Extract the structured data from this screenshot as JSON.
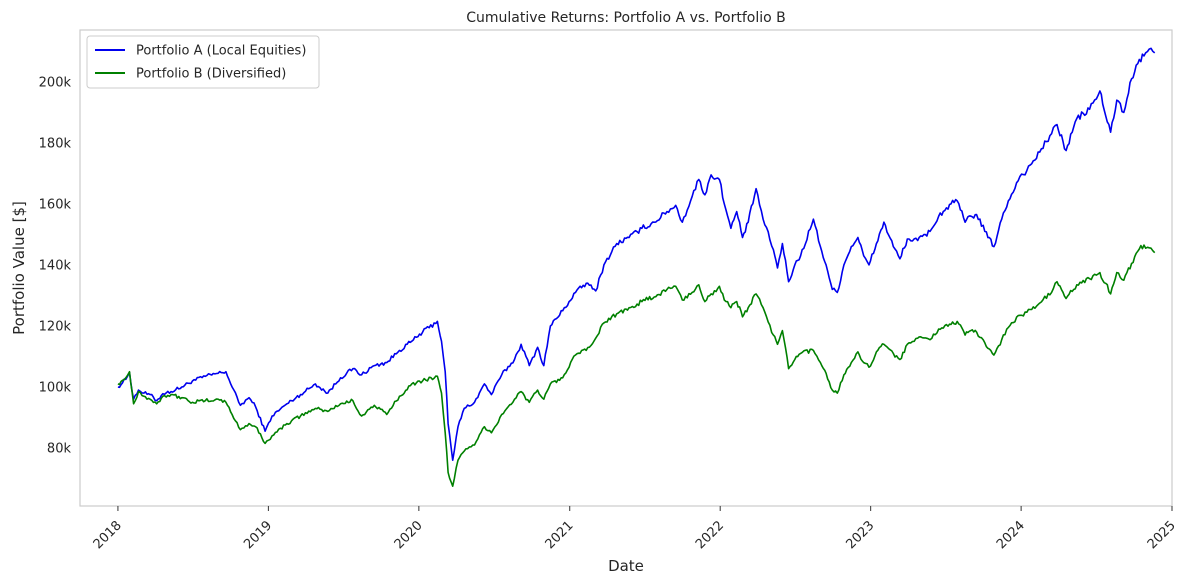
{
  "chart_data": {
    "type": "line",
    "title": "Cumulative Returns: Portfolio A vs. Portfolio B",
    "xlabel": "Date",
    "ylabel": "Portfolio Value [$]",
    "x_range": [
      "2017-10-01",
      "2025-01-01"
    ],
    "y_range": [
      61000,
      217000
    ],
    "grid": false,
    "legend_position": "top-left",
    "x_ticks": [
      {
        "date": "2018-01-01",
        "label": "2018"
      },
      {
        "date": "2019-01-01",
        "label": "2019"
      },
      {
        "date": "2020-01-01",
        "label": "2020"
      },
      {
        "date": "2021-01-01",
        "label": "2021"
      },
      {
        "date": "2022-01-01",
        "label": "2022"
      },
      {
        "date": "2023-01-01",
        "label": "2023"
      },
      {
        "date": "2024-01-01",
        "label": "2024"
      },
      {
        "date": "2025-01-01",
        "label": "2025"
      }
    ],
    "y_ticks": [
      {
        "value": 80000,
        "label": "80k"
      },
      {
        "value": 100000,
        "label": "100k"
      },
      {
        "value": 120000,
        "label": "120k"
      },
      {
        "value": 140000,
        "label": "140k"
      },
      {
        "value": 160000,
        "label": "160k"
      },
      {
        "value": 180000,
        "label": "180k"
      },
      {
        "value": 200000,
        "label": "200k"
      }
    ],
    "series": [
      {
        "name": "Portfolio A (Local Equities)",
        "color": "#0000ee",
        "points": [
          [
            "2018-01-01",
            100000
          ],
          [
            "2018-01-20",
            102500
          ],
          [
            "2018-01-29",
            104800
          ],
          [
            "2018-02-08",
            96000
          ],
          [
            "2018-02-20",
            99000
          ],
          [
            "2018-03-05",
            98000
          ],
          [
            "2018-03-20",
            97500
          ],
          [
            "2018-04-05",
            95500
          ],
          [
            "2018-04-20",
            97800
          ],
          [
            "2018-05-10",
            98500
          ],
          [
            "2018-06-05",
            100000
          ],
          [
            "2018-07-01",
            102000
          ],
          [
            "2018-08-01",
            103500
          ],
          [
            "2018-09-01",
            104500
          ],
          [
            "2018-09-20",
            105000
          ],
          [
            "2018-10-05",
            100000
          ],
          [
            "2018-10-25",
            94000
          ],
          [
            "2018-11-15",
            96500
          ],
          [
            "2018-12-01",
            93500
          ],
          [
            "2018-12-24",
            85500
          ],
          [
            "2019-01-10",
            90500
          ],
          [
            "2019-02-15",
            94500
          ],
          [
            "2019-03-20",
            97500
          ],
          [
            "2019-04-25",
            101000
          ],
          [
            "2019-05-25",
            98000
          ],
          [
            "2019-06-25",
            103000
          ],
          [
            "2019-07-25",
            106000
          ],
          [
            "2019-08-15",
            104000
          ],
          [
            "2019-09-15",
            107000
          ],
          [
            "2019-10-15",
            108000
          ],
          [
            "2019-11-15",
            112000
          ],
          [
            "2019-12-15",
            115000
          ],
          [
            "2020-01-10",
            118000
          ],
          [
            "2020-02-15",
            121500
          ],
          [
            "2020-02-25",
            115000
          ],
          [
            "2020-03-05",
            105000
          ],
          [
            "2020-03-12",
            88000
          ],
          [
            "2020-03-23",
            76000
          ],
          [
            "2020-04-05",
            87000
          ],
          [
            "2020-04-20",
            93000
          ],
          [
            "2020-05-15",
            95000
          ],
          [
            "2020-06-08",
            101000
          ],
          [
            "2020-06-25",
            97500
          ],
          [
            "2020-07-20",
            104000
          ],
          [
            "2020-08-20",
            109000
          ],
          [
            "2020-09-05",
            114000
          ],
          [
            "2020-09-25",
            107000
          ],
          [
            "2020-10-15",
            113000
          ],
          [
            "2020-10-30",
            107000
          ],
          [
            "2020-11-15",
            120000
          ],
          [
            "2020-12-15",
            125000
          ],
          [
            "2021-01-15",
            131000
          ],
          [
            "2021-02-10",
            134000
          ],
          [
            "2021-03-05",
            131500
          ],
          [
            "2021-03-25",
            140000
          ],
          [
            "2021-04-25",
            147000
          ],
          [
            "2021-05-25",
            149000
          ],
          [
            "2021-06-25",
            152000
          ],
          [
            "2021-07-25",
            154000
          ],
          [
            "2021-08-25",
            157500
          ],
          [
            "2021-09-15",
            159500
          ],
          [
            "2021-10-01",
            154000
          ],
          [
            "2021-10-25",
            162500
          ],
          [
            "2021-11-10",
            168000
          ],
          [
            "2021-11-25",
            163000
          ],
          [
            "2021-12-10",
            169500
          ],
          [
            "2021-12-30",
            168000
          ],
          [
            "2022-01-15",
            158000
          ],
          [
            "2022-01-27",
            152000
          ],
          [
            "2022-02-10",
            157500
          ],
          [
            "2022-02-24",
            149000
          ],
          [
            "2022-03-10",
            154000
          ],
          [
            "2022-03-29",
            165000
          ],
          [
            "2022-04-15",
            155000
          ],
          [
            "2022-05-10",
            145000
          ],
          [
            "2022-05-20",
            139000
          ],
          [
            "2022-06-01",
            147000
          ],
          [
            "2022-06-16",
            134500
          ],
          [
            "2022-07-01",
            140000
          ],
          [
            "2022-07-15",
            143000
          ],
          [
            "2022-08-15",
            155000
          ],
          [
            "2022-09-01",
            146000
          ],
          [
            "2022-09-15",
            140000
          ],
          [
            "2022-09-30",
            132000
          ],
          [
            "2022-10-12",
            131000
          ],
          [
            "2022-10-28",
            140000
          ],
          [
            "2022-11-15",
            146000
          ],
          [
            "2022-12-01",
            149000
          ],
          [
            "2022-12-15",
            143000
          ],
          [
            "2022-12-28",
            140000
          ],
          [
            "2023-01-15",
            147000
          ],
          [
            "2023-02-02",
            154000
          ],
          [
            "2023-02-25",
            146000
          ],
          [
            "2023-03-13",
            142000
          ],
          [
            "2023-03-31",
            148500
          ],
          [
            "2023-04-25",
            148000
          ],
          [
            "2023-05-25",
            151000
          ],
          [
            "2023-06-15",
            156000
          ],
          [
            "2023-07-15",
            160000
          ],
          [
            "2023-07-30",
            161000
          ],
          [
            "2023-08-18",
            154000
          ],
          [
            "2023-09-01",
            156000
          ],
          [
            "2023-09-15",
            156500
          ],
          [
            "2023-10-05",
            151000
          ],
          [
            "2023-10-27",
            146000
          ],
          [
            "2023-11-15",
            155000
          ],
          [
            "2023-12-01",
            161000
          ],
          [
            "2023-12-29",
            169000
          ],
          [
            "2024-01-15",
            171000
          ],
          [
            "2024-02-15",
            177000
          ],
          [
            "2024-03-15",
            183000
          ],
          [
            "2024-03-28",
            186000
          ],
          [
            "2024-04-19",
            177500
          ],
          [
            "2024-05-15",
            188000
          ],
          [
            "2024-06-15",
            191000
          ],
          [
            "2024-07-10",
            197000
          ],
          [
            "2024-07-24",
            189000
          ],
          [
            "2024-08-05",
            183500
          ],
          [
            "2024-08-20",
            194000
          ],
          [
            "2024-09-06",
            190000
          ],
          [
            "2024-09-25",
            201000
          ],
          [
            "2024-10-10",
            206000
          ],
          [
            "2024-10-25",
            208500
          ],
          [
            "2024-11-11",
            211000
          ],
          [
            "2024-11-20",
            209500
          ]
        ]
      },
      {
        "name": "Portfolio B (Diversified)",
        "color": "#008000",
        "points": [
          [
            "2018-01-01",
            101000
          ],
          [
            "2018-01-20",
            103000
          ],
          [
            "2018-01-29",
            105000
          ],
          [
            "2018-02-08",
            94500
          ],
          [
            "2018-02-20",
            98500
          ],
          [
            "2018-03-05",
            97000
          ],
          [
            "2018-03-20",
            96000
          ],
          [
            "2018-04-05",
            94500
          ],
          [
            "2018-04-20",
            97000
          ],
          [
            "2018-05-10",
            97500
          ],
          [
            "2018-06-05",
            96500
          ],
          [
            "2018-07-01",
            95000
          ],
          [
            "2018-08-01",
            95500
          ],
          [
            "2018-09-01",
            96000
          ],
          [
            "2018-09-20",
            95000
          ],
          [
            "2018-10-05",
            91000
          ],
          [
            "2018-10-25",
            86000
          ],
          [
            "2018-11-15",
            88000
          ],
          [
            "2018-12-01",
            87000
          ],
          [
            "2018-12-24",
            81500
          ],
          [
            "2019-01-10",
            84000
          ],
          [
            "2019-02-15",
            88000
          ],
          [
            "2019-03-20",
            90500
          ],
          [
            "2019-04-25",
            93000
          ],
          [
            "2019-05-25",
            92000
          ],
          [
            "2019-06-25",
            94500
          ],
          [
            "2019-07-25",
            95500
          ],
          [
            "2019-08-15",
            90500
          ],
          [
            "2019-09-15",
            94000
          ],
          [
            "2019-10-15",
            91000
          ],
          [
            "2019-11-15",
            97000
          ],
          [
            "2019-12-15",
            101000
          ],
          [
            "2020-01-10",
            102000
          ],
          [
            "2020-02-15",
            103500
          ],
          [
            "2020-02-25",
            98000
          ],
          [
            "2020-03-05",
            85000
          ],
          [
            "2020-03-12",
            72000
          ],
          [
            "2020-03-23",
            67500
          ],
          [
            "2020-04-05",
            76000
          ],
          [
            "2020-04-20",
            79000
          ],
          [
            "2020-05-15",
            81000
          ],
          [
            "2020-06-08",
            87000
          ],
          [
            "2020-06-25",
            85000
          ],
          [
            "2020-07-20",
            91000
          ],
          [
            "2020-08-20",
            96000
          ],
          [
            "2020-09-05",
            98500
          ],
          [
            "2020-09-25",
            95000
          ],
          [
            "2020-10-15",
            99000
          ],
          [
            "2020-10-30",
            96000
          ],
          [
            "2020-11-15",
            101000
          ],
          [
            "2020-12-15",
            103000
          ],
          [
            "2021-01-15",
            110500
          ],
          [
            "2021-02-10",
            112000
          ],
          [
            "2021-03-05",
            116000
          ],
          [
            "2021-03-25",
            121000
          ],
          [
            "2021-04-25",
            124000
          ],
          [
            "2021-05-25",
            126000
          ],
          [
            "2021-06-25",
            128000
          ],
          [
            "2021-07-25",
            129500
          ],
          [
            "2021-08-25",
            132000
          ],
          [
            "2021-09-15",
            133000
          ],
          [
            "2021-10-01",
            128500
          ],
          [
            "2021-10-25",
            131000
          ],
          [
            "2021-11-10",
            133500
          ],
          [
            "2021-11-25",
            128000
          ],
          [
            "2021-12-10",
            130500
          ],
          [
            "2021-12-30",
            133000
          ],
          [
            "2022-01-15",
            128000
          ],
          [
            "2022-01-27",
            126000
          ],
          [
            "2022-02-10",
            128000
          ],
          [
            "2022-02-24",
            123000
          ],
          [
            "2022-03-10",
            126000
          ],
          [
            "2022-03-29",
            130500
          ],
          [
            "2022-04-15",
            126000
          ],
          [
            "2022-05-10",
            117000
          ],
          [
            "2022-05-20",
            114000
          ],
          [
            "2022-06-01",
            118500
          ],
          [
            "2022-06-16",
            106000
          ],
          [
            "2022-07-01",
            109000
          ],
          [
            "2022-07-15",
            111000
          ],
          [
            "2022-08-15",
            112000
          ],
          [
            "2022-09-01",
            108000
          ],
          [
            "2022-09-15",
            104500
          ],
          [
            "2022-09-30",
            99000
          ],
          [
            "2022-10-12",
            98000
          ],
          [
            "2022-10-28",
            104000
          ],
          [
            "2022-11-15",
            108000
          ],
          [
            "2022-12-01",
            111500
          ],
          [
            "2022-12-15",
            108000
          ],
          [
            "2022-12-28",
            106500
          ],
          [
            "2023-01-15",
            111500
          ],
          [
            "2023-02-02",
            114000
          ],
          [
            "2023-02-25",
            111000
          ],
          [
            "2023-03-13",
            109000
          ],
          [
            "2023-03-31",
            114000
          ],
          [
            "2023-04-25",
            116000
          ],
          [
            "2023-05-25",
            115500
          ],
          [
            "2023-06-15",
            119000
          ],
          [
            "2023-07-15",
            120500
          ],
          [
            "2023-07-30",
            121500
          ],
          [
            "2023-08-18",
            117000
          ],
          [
            "2023-09-01",
            118500
          ],
          [
            "2023-09-15",
            118000
          ],
          [
            "2023-10-05",
            114500
          ],
          [
            "2023-10-27",
            110500
          ],
          [
            "2023-11-15",
            115500
          ],
          [
            "2023-12-01",
            119500
          ],
          [
            "2023-12-29",
            123500
          ],
          [
            "2024-01-15",
            124500
          ],
          [
            "2024-02-15",
            127500
          ],
          [
            "2024-03-15",
            131000
          ],
          [
            "2024-03-28",
            134500
          ],
          [
            "2024-04-19",
            129000
          ],
          [
            "2024-05-15",
            133500
          ],
          [
            "2024-06-15",
            135500
          ],
          [
            "2024-07-10",
            137500
          ],
          [
            "2024-07-24",
            134000
          ],
          [
            "2024-08-05",
            130500
          ],
          [
            "2024-08-20",
            137500
          ],
          [
            "2024-09-06",
            135000
          ],
          [
            "2024-09-25",
            140500
          ],
          [
            "2024-10-10",
            144500
          ],
          [
            "2024-10-25",
            146500
          ],
          [
            "2024-11-11",
            145500
          ],
          [
            "2024-11-20",
            144000
          ]
        ]
      }
    ]
  }
}
